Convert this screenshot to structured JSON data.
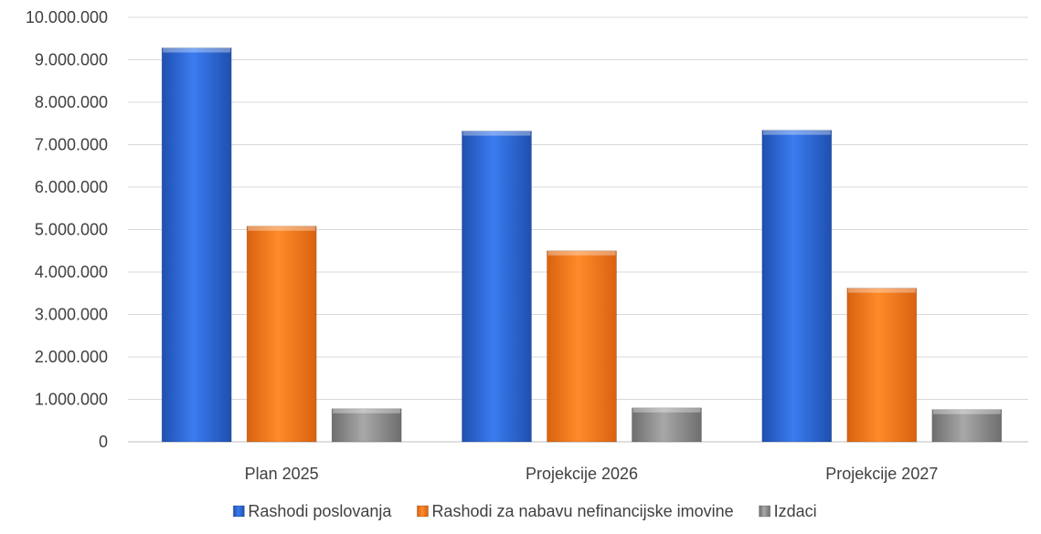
{
  "chart_data": {
    "type": "bar",
    "categories": [
      "Plan 2025",
      "Projekcije 2026",
      "Projekcije 2027"
    ],
    "series": [
      {
        "name": "Rashodi poslovanja",
        "values": [
          9280000,
          7320000,
          7340000
        ],
        "color": "#2f6fe0"
      },
      {
        "name": "Rashodi za nabavu nefinancijske imovine",
        "values": [
          5080000,
          4500000,
          3620000
        ],
        "color": "#f57c1f"
      },
      {
        "name": "Izdaci",
        "values": [
          780000,
          800000,
          760000
        ],
        "color": "#8c8c8c"
      }
    ],
    "yticks": [
      "0",
      "1.000.000",
      "2.000.000",
      "3.000.000",
      "4.000.000",
      "5.000.000",
      "6.000.000",
      "7.000.000",
      "8.000.000",
      "9.000.000",
      "10.000.000"
    ],
    "ylim": [
      0,
      10000000
    ],
    "grid": true,
    "legend_position": "bottom"
  }
}
